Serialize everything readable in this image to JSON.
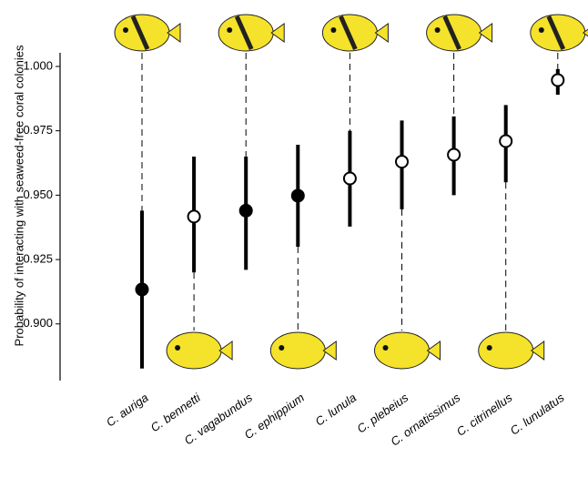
{
  "chart_data": {
    "type": "errorbar",
    "y_label": "Probability of interacting with seaweed-free coral colonies",
    "categories": [
      "C. auriga",
      "C. bennetti",
      "C. vagabundus",
      "C. ephippium",
      "C. lunula",
      "C. plebeius",
      "C. ornatissimus",
      "C. citrinellus",
      "C. lunulatus"
    ],
    "values": [
      0.9134,
      0.9417,
      0.944,
      0.9498,
      0.9565,
      0.963,
      0.9657,
      0.971,
      0.9947
    ],
    "lower": [
      0.8827,
      0.92,
      0.921,
      0.93,
      0.9378,
      0.9445,
      0.95,
      0.955,
      0.989
    ],
    "upper": [
      0.944,
      0.965,
      0.965,
      0.9696,
      0.975,
      0.979,
      0.9806,
      0.985,
      0.999
    ],
    "filled": [
      true,
      false,
      true,
      true,
      false,
      false,
      false,
      false,
      false
    ],
    "color": "#000000",
    "ylim": [
      0.878,
      1.006
    ],
    "yticks": [
      {
        "value": 0.9,
        "label": "0.900"
      },
      {
        "value": 0.925,
        "label": "0.925"
      },
      {
        "value": 0.95,
        "label": "0.950"
      },
      {
        "value": 0.975,
        "label": "0.975"
      },
      {
        "value": 1.0,
        "label": "1.000"
      }
    ]
  }
}
